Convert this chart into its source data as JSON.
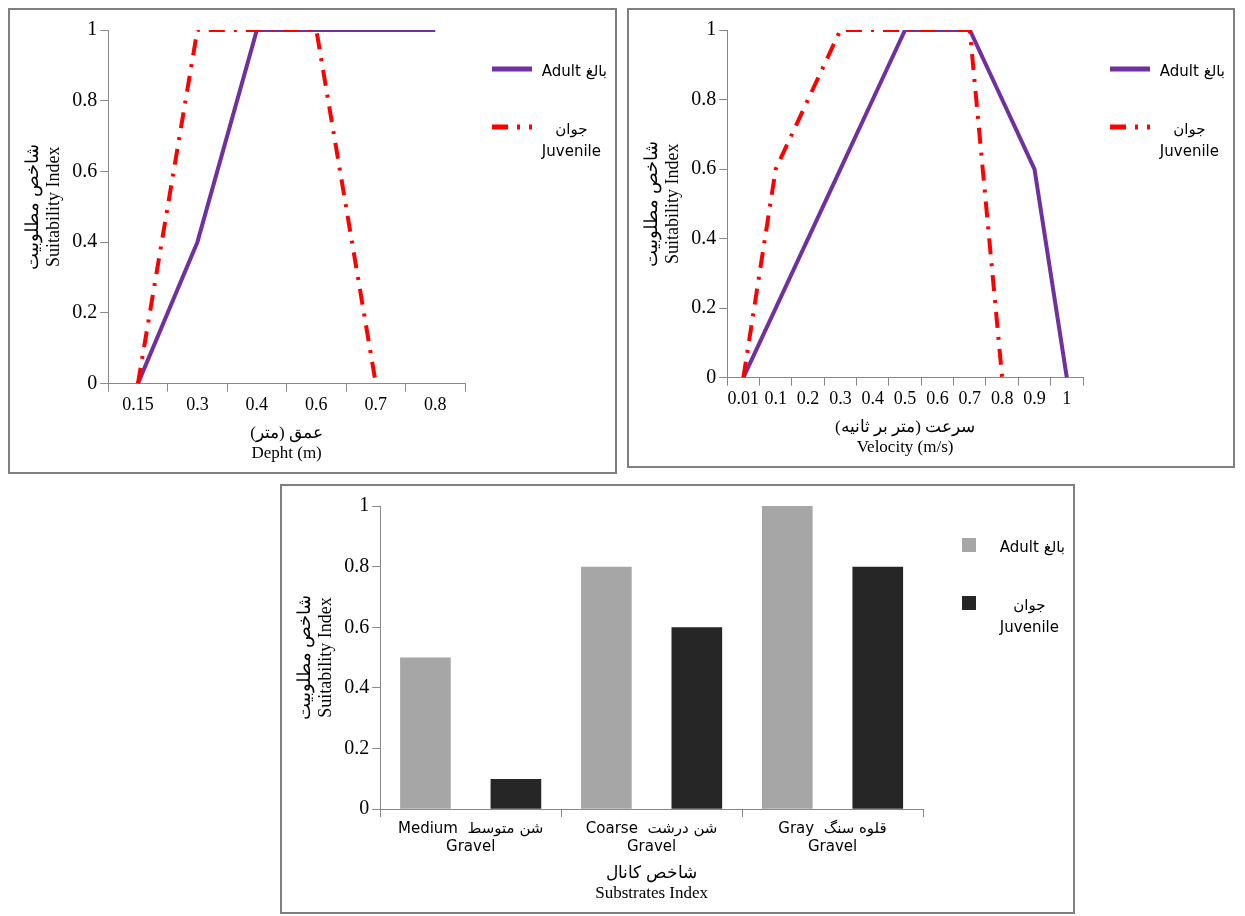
{
  "chart_data": [
    {
      "type": "line",
      "xlabel": "عمق (متر)\nDepht (m)",
      "ylabel": "شاخص مطلوبیت\nSuitability Index",
      "categories": [
        "0.15",
        "0.3",
        "0.4",
        "0.6",
        "0.7",
        "0.8"
      ],
      "ylim": [
        0,
        1
      ],
      "yticks": [
        0,
        0.2,
        0.4,
        0.6,
        0.8,
        1
      ],
      "legend": "right",
      "marker": "none",
      "series": [
        {
          "name": "Adult بالغ",
          "color": "#7030a0",
          "line_style": "solid",
          "values": [
            0,
            0.4,
            1,
            1,
            1,
            1
          ]
        },
        {
          "name": "جوان\nJuvenile",
          "color": "#ff0000",
          "line_style": "dashed",
          "values": [
            0,
            1,
            1,
            1,
            0,
            null
          ]
        }
      ]
    },
    {
      "type": "line",
      "xlabel": "سرعت (متر بر ثانیه)\nVelocity (m/s)",
      "ylabel": "شاخص مطلوبیت\nSuitability Index",
      "categories": [
        "0.01",
        "0.1",
        "0.2",
        "0.3",
        "0.4",
        "0.5",
        "0.6",
        "0.7",
        "0.8",
        "0.9",
        "1"
      ],
      "ylim": [
        0,
        1
      ],
      "yticks": [
        0,
        0.2,
        0.4,
        0.6,
        0.8,
        1
      ],
      "legend": "right",
      "marker": "none",
      "series": [
        {
          "name": "Adult بالغ",
          "color": "#7030a0",
          "line_style": "solid",
          "values": [
            0,
            0.2,
            0.4,
            0.6,
            0.8,
            1,
            1,
            1,
            0.8,
            0.6,
            0
          ]
        },
        {
          "name": "جوان\nJuvenile",
          "color": "#ff0000",
          "line_style": "dashed",
          "values": [
            0,
            0.6,
            0.8,
            1,
            1,
            1,
            1,
            1,
            0,
            null,
            null
          ]
        }
      ]
    },
    {
      "type": "bar",
      "xlabel": "شاخص کانال\nSubstrates Index",
      "ylabel": "شاخص مطلوبیت\nSuitability Index",
      "categories": [
        "Medium  شن متوسط\nGravel",
        "Coarse  شن درشت\nGravel",
        "Gray  قلوه سنگ\nGravel"
      ],
      "ylim": [
        0,
        1
      ],
      "yticks": [
        0,
        0.2,
        0.4,
        0.6,
        0.8,
        1
      ],
      "legend": "right",
      "series": [
        {
          "name": "Adult بالغ",
          "color": "#a6a6a6",
          "values": [
            0.5,
            0.8,
            1
          ]
        },
        {
          "name": "جوان\nJuvenile",
          "color": "#262626",
          "values": [
            0.1,
            0.6,
            0.8
          ]
        }
      ]
    }
  ]
}
